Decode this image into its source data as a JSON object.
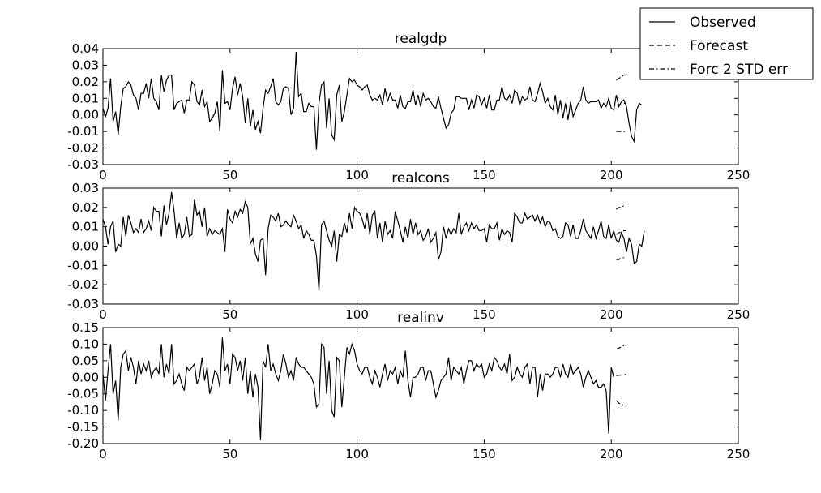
{
  "chart_data": [
    {
      "type": "line",
      "title": "realgdp",
      "xlim": [
        0,
        250
      ],
      "ylim": [
        -0.03,
        0.04
      ],
      "xticks": [
        "0",
        "50",
        "100",
        "150",
        "200",
        "250"
      ],
      "yticks": [
        "-0.03",
        "-0.02",
        "-0.01",
        "0.00",
        "0.01",
        "0.02",
        "0.03",
        "0.04"
      ],
      "xticks_values": [
        0,
        50,
        100,
        150,
        200,
        250
      ],
      "yticks_values": [
        -0.03,
        -0.02,
        -0.01,
        0.0,
        0.01,
        0.02,
        0.03,
        0.04
      ],
      "observed_x_start": 0,
      "observed": [
        0.004,
        -0.001,
        0.004,
        0.022,
        -0.004,
        0.002,
        -0.012,
        0.005,
        0.016,
        0.017,
        0.02,
        0.018,
        0.012,
        0.01,
        0.003,
        0.013,
        0.013,
        0.019,
        0.01,
        0.022,
        0.01,
        0.008,
        0.003,
        0.024,
        0.014,
        0.021,
        0.024,
        0.024,
        0.003,
        0.007,
        0.008,
        0.009,
        0.001,
        0.009,
        0.009,
        0.02,
        0.018,
        0.008,
        0.006,
        0.015,
        0.005,
        0.008,
        -0.004,
        -0.002,
        0.001,
        0.008,
        -0.01,
        0.027,
        0.007,
        0.008,
        0.003,
        0.016,
        0.023,
        0.012,
        0.019,
        0.011,
        -0.005,
        0.01,
        -0.007,
        0.003,
        -0.009,
        -0.004,
        -0.011,
        0.004,
        0.015,
        0.013,
        0.017,
        0.022,
        0.008,
        0.006,
        0.008,
        0.016,
        0.017,
        0.016,
        0.0,
        0.004,
        0.038,
        0.011,
        0.013,
        0.002,
        0.002,
        0.007,
        0.005,
        0.005,
        -0.021,
        0.007,
        0.018,
        0.02,
        -0.008,
        0.01,
        -0.012,
        -0.015,
        0.012,
        0.018,
        -0.004,
        0.002,
        0.012,
        0.022,
        0.02,
        0.021,
        0.018,
        0.017,
        0.015,
        0.017,
        0.018,
        0.012,
        0.009,
        0.01,
        0.009,
        0.012,
        0.006,
        0.016,
        0.008,
        0.013,
        0.009,
        0.009,
        0.004,
        0.012,
        0.005,
        0.004,
        0.008,
        0.008,
        0.015,
        0.006,
        0.012,
        0.005,
        0.013,
        0.009,
        0.01,
        0.008,
        0.005,
        0.004,
        0.011,
        0.004,
        -0.002,
        -0.008,
        -0.006,
        0.001,
        0.003,
        0.011,
        0.011,
        0.01,
        0.01,
        0.01,
        0.003,
        0.009,
        0.004,
        0.012,
        0.011,
        0.006,
        0.01,
        0.004,
        0.012,
        0.003,
        0.003,
        0.009,
        0.009,
        0.017,
        0.01,
        0.009,
        0.012,
        0.007,
        0.015,
        0.013,
        0.006,
        0.011,
        0.009,
        0.01,
        0.017,
        0.009,
        0.008,
        0.013,
        0.019,
        0.014,
        0.007,
        0.01,
        0.005,
        0.003,
        0.012,
        0.0,
        0.009,
        -0.002,
        0.007,
        -0.003,
        0.008,
        -0.001,
        0.003,
        0.007,
        0.009,
        0.017,
        0.009,
        0.007,
        0.008,
        0.008,
        0.008,
        0.009,
        0.004,
        0.007,
        0.005,
        0.01,
        0.004,
        0.003,
        0.012,
        0.005,
        0.008,
        0.009,
        0.005,
        -0.005,
        -0.013,
        -0.016,
        0.003,
        0.007,
        0.006
      ],
      "forecast_x_start": 202,
      "forecast": [
        0.006,
        0.006,
        0.007,
        0.007,
        0.007
      ],
      "upper": [
        0.021,
        0.022,
        0.023,
        0.024,
        0.025
      ],
      "lower": [
        -0.01,
        -0.01,
        -0.01,
        -0.01,
        -0.01
      ]
    },
    {
      "type": "line",
      "title": "realcons",
      "xlim": [
        0,
        250
      ],
      "ylim": [
        -0.03,
        0.03
      ],
      "xticks": [
        "0",
        "50",
        "100",
        "150",
        "200",
        "250"
      ],
      "yticks": [
        "-0.03",
        "-0.02",
        "-0.01",
        "0.00",
        "0.01",
        "0.02",
        "0.03"
      ],
      "xticks_values": [
        0,
        50,
        100,
        150,
        200,
        250
      ],
      "yticks_values": [
        -0.03,
        -0.02,
        -0.01,
        0.0,
        0.01,
        0.02,
        0.03
      ],
      "observed_x_start": 0,
      "observed": [
        0.014,
        0.01,
        0.001,
        0.01,
        0.013,
        -0.003,
        0.001,
        0.0,
        0.015,
        0.005,
        0.016,
        0.012,
        0.007,
        0.009,
        0.007,
        0.014,
        0.007,
        0.009,
        0.013,
        0.008,
        0.02,
        0.018,
        0.018,
        0.005,
        0.021,
        0.011,
        0.017,
        0.028,
        0.018,
        0.004,
        0.012,
        0.004,
        0.006,
        0.015,
        0.005,
        0.006,
        0.024,
        0.016,
        0.018,
        0.01,
        0.02,
        0.005,
        0.009,
        0.006,
        0.008,
        0.007,
        0.006,
        0.009,
        -0.003,
        0.019,
        0.014,
        0.012,
        0.018,
        0.015,
        0.019,
        0.017,
        0.023,
        0.02,
        0.001,
        0.004,
        -0.004,
        -0.008,
        0.003,
        0.004,
        -0.015,
        0.009,
        0.016,
        0.015,
        0.013,
        0.017,
        0.01,
        0.011,
        0.013,
        0.011,
        0.01,
        0.016,
        0.013,
        0.009,
        0.011,
        0.004,
        0.008,
        0.006,
        0.003,
        0.003,
        -0.005,
        -0.023,
        0.011,
        0.013,
        0.008,
        0.003,
        0.0,
        0.008,
        -0.008,
        0.006,
        0.005,
        0.012,
        0.007,
        0.017,
        0.009,
        0.02,
        0.018,
        0.017,
        0.014,
        0.009,
        0.017,
        0.006,
        0.016,
        0.018,
        0.004,
        0.012,
        0.002,
        0.013,
        0.006,
        0.008,
        0.004,
        0.018,
        0.013,
        0.008,
        0.002,
        0.01,
        0.004,
        0.014,
        0.006,
        0.012,
        0.006,
        0.008,
        0.003,
        0.005,
        0.009,
        0.002,
        0.004,
        0.007,
        -0.007,
        -0.003,
        0.01,
        0.004,
        0.009,
        0.006,
        0.009,
        0.007,
        0.017,
        0.006,
        0.01,
        0.012,
        0.008,
        0.012,
        0.009,
        0.011,
        0.008,
        0.008,
        0.009,
        0.002,
        0.011,
        0.009,
        0.009,
        0.012,
        0.003,
        0.009,
        0.006,
        0.008,
        0.007,
        0.002,
        0.017,
        0.015,
        0.012,
        0.012,
        0.017,
        0.014,
        0.015,
        0.016,
        0.013,
        0.016,
        0.012,
        0.015,
        0.01,
        0.013,
        0.012,
        0.008,
        0.009,
        0.005,
        0.004,
        0.005,
        0.012,
        0.011,
        0.005,
        0.011,
        0.004,
        0.004,
        0.008,
        0.014,
        0.008,
        0.006,
        0.004,
        0.01,
        0.004,
        0.008,
        0.013,
        0.005,
        0.004,
        0.011,
        0.004,
        0.008,
        0.003,
        0.002,
        0.007,
        0.004,
        -0.003,
        0.004,
        0.001,
        -0.009,
        -0.008,
        0.001,
        0.0,
        0.008
      ],
      "forecast_x_start": 202,
      "forecast": [
        0.006,
        0.007,
        0.007,
        0.008,
        0.008
      ],
      "upper": [
        0.019,
        0.02,
        0.02,
        0.021,
        0.022
      ],
      "lower": [
        -0.007,
        -0.007,
        -0.006,
        -0.006,
        -0.006
      ]
    },
    {
      "type": "line",
      "title": "realinv",
      "xlim": [
        0,
        250
      ],
      "ylim": [
        -0.2,
        0.15
      ],
      "xticks": [
        "0",
        "50",
        "100",
        "150",
        "200",
        "250"
      ],
      "yticks": [
        "-0.20",
        "-0.15",
        "-0.10",
        "-0.05",
        "0.00",
        "0.05",
        "0.10",
        "0.15"
      ],
      "xticks_values": [
        0,
        50,
        100,
        150,
        200,
        250
      ],
      "yticks_values": [
        -0.2,
        -0.15,
        -0.1,
        -0.05,
        0.0,
        0.05,
        0.1,
        0.15
      ],
      "observed_x_start": 0,
      "observed": [
        0.01,
        -0.07,
        0.02,
        0.1,
        -0.05,
        -0.01,
        -0.13,
        0.03,
        0.07,
        0.08,
        0.02,
        0.06,
        0.03,
        -0.02,
        0.05,
        0.01,
        0.04,
        0.02,
        0.05,
        0.0,
        0.02,
        0.03,
        0.01,
        0.1,
        0.0,
        0.04,
        0.01,
        0.1,
        -0.02,
        -0.01,
        0.01,
        -0.02,
        -0.04,
        0.03,
        0.02,
        0.03,
        0.04,
        -0.02,
        0.0,
        0.06,
        -0.01,
        0.03,
        -0.05,
        -0.02,
        0.02,
        0.01,
        -0.03,
        0.12,
        0.02,
        0.04,
        -0.02,
        0.07,
        0.06,
        0.02,
        0.05,
        -0.01,
        0.06,
        -0.05,
        0.02,
        -0.06,
        0.01,
        -0.03,
        -0.19,
        0.05,
        0.03,
        0.1,
        0.02,
        0.04,
        0.01,
        -0.01,
        0.02,
        0.07,
        0.04,
        0.0,
        0.02,
        -0.01,
        0.06,
        0.04,
        0.03,
        0.03,
        0.02,
        0.01,
        0.0,
        -0.02,
        -0.09,
        -0.08,
        0.1,
        0.09,
        -0.05,
        0.05,
        -0.1,
        -0.12,
        0.06,
        0.05,
        -0.09,
        0.0,
        0.09,
        0.07,
        0.1,
        0.08,
        0.04,
        0.02,
        0.01,
        0.03,
        0.03,
        0.0,
        -0.02,
        0.02,
        0.0,
        -0.03,
        0.01,
        0.04,
        -0.01,
        0.02,
        0.01,
        0.03,
        -0.02,
        0.02,
        0.0,
        0.08,
        -0.01,
        -0.06,
        0.0,
        0.0,
        0.01,
        0.03,
        0.03,
        -0.01,
        0.02,
        0.02,
        -0.02,
        -0.06,
        -0.04,
        -0.01,
        0.0,
        0.01,
        0.06,
        -0.01,
        0.03,
        0.02,
        0.01,
        0.03,
        -0.02,
        0.02,
        0.05,
        0.05,
        0.02,
        0.04,
        0.03,
        0.04,
        0.0,
        0.01,
        0.04,
        0.02,
        0.06,
        0.05,
        0.03,
        0.02,
        0.04,
        0.01,
        0.07,
        -0.01,
        0.0,
        0.03,
        0.01,
        0.0,
        0.03,
        0.04,
        -0.02,
        0.03,
        0.03,
        -0.06,
        0.01,
        -0.04,
        0.01,
        0.01,
        0.0,
        0.01,
        0.03,
        0.03,
        0.0,
        0.04,
        0.01,
        0.0,
        0.04,
        0.01,
        0.02,
        0.03,
        0.01,
        -0.03,
        0.0,
        0.02,
        0.0,
        -0.02,
        -0.01,
        -0.03,
        -0.03,
        -0.02,
        -0.04,
        -0.17,
        0.03,
        0.0
      ],
      "forecast_x_start": 202,
      "forecast": [
        0.005,
        0.006,
        0.007,
        0.008,
        0.008
      ],
      "upper": [
        0.085,
        0.088,
        0.092,
        0.096,
        0.1
      ],
      "lower": [
        -0.07,
        -0.078,
        -0.082,
        -0.085,
        -0.088
      ]
    }
  ],
  "legend": {
    "placement": "top-right",
    "entries": [
      {
        "label": "Observed",
        "style": "solid"
      },
      {
        "label": "Forecast",
        "style": "dashed"
      },
      {
        "label": "Forc 2 STD err",
        "style": "dashdot"
      }
    ]
  },
  "colors": {
    "line": "#000000",
    "background": "#ffffff"
  }
}
